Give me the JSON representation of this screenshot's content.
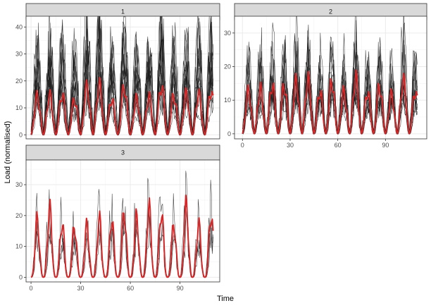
{
  "chart_data": {
    "type": "line",
    "xlabel": "Time",
    "ylabel": "Load (normalised)",
    "colors": {
      "raw": "#1a1a1a",
      "mean": "#d62728",
      "strip": "#d9d9d9",
      "grid": "#ebebeb"
    },
    "panels": [
      {
        "label": "1",
        "xlim": [
          -3,
          114
        ],
        "ylim": [
          -1.5,
          44
        ],
        "yticks": [
          0,
          10,
          20,
          30,
          40
        ],
        "xticks": [
          0,
          30,
          60,
          90
        ],
        "show_x_ticks": false,
        "period": 7.5,
        "peak": 17,
        "spread": 1.7,
        "profile": "broad",
        "lines": 14,
        "seed": 11
      },
      {
        "label": "2",
        "xlim": [
          -5,
          116
        ],
        "ylim": [
          -1.5,
          35
        ],
        "yticks": [
          0,
          10,
          20,
          30
        ],
        "xticks": [
          0,
          30,
          60,
          90
        ],
        "show_x_ticks": true,
        "period": 7.5,
        "peak": 15,
        "spread": 1.8,
        "profile": "broad",
        "lines": 12,
        "seed": 23
      },
      {
        "label": "3",
        "xlim": [
          -3,
          114
        ],
        "ylim": [
          -1.5,
          38
        ],
        "yticks": [
          0,
          10,
          20,
          30
        ],
        "xticks": [
          0,
          30,
          60,
          90
        ],
        "show_x_ticks": true,
        "period": 7.5,
        "peak": 22,
        "spread": 1.15,
        "profile": "spiky",
        "lines": 3,
        "seed": 37
      }
    ]
  }
}
